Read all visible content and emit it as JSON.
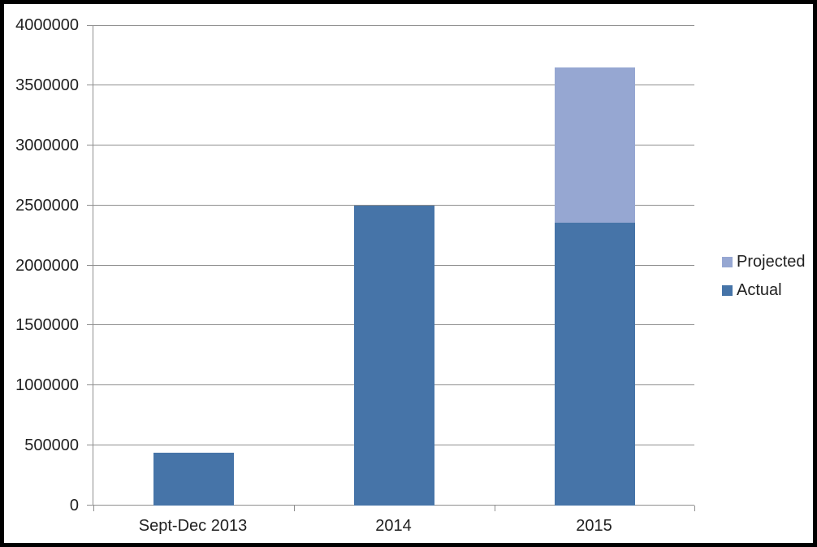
{
  "chart_data": {
    "type": "bar",
    "stacked": true,
    "title": "",
    "xlabel": "",
    "ylabel": "",
    "categories": [
      "Sept-Dec 2013",
      "2014",
      "2015"
    ],
    "series": [
      {
        "name": "Actual",
        "color": "#4674A8",
        "values": [
          440000,
          2500000,
          2360000
        ]
      },
      {
        "name": "Projected",
        "color": "#96A7D2",
        "values": [
          0,
          0,
          1290000
        ]
      }
    ],
    "ylim": [
      0,
      4000000
    ],
    "y_ticks": [
      0,
      500000,
      1000000,
      1500000,
      2000000,
      2500000,
      3000000,
      3500000,
      4000000
    ],
    "grid": true,
    "legend_position": "right"
  },
  "legend": {
    "items": [
      {
        "label": "Projected",
        "color": "#96A7D2"
      },
      {
        "label": "Actual",
        "color": "#4674A8"
      }
    ]
  },
  "colors": {
    "grid": "#8E8E8E",
    "axis": "#8E8E8E",
    "text": "#212121",
    "background": "#FFFFFF",
    "frame_border": "#000000"
  }
}
